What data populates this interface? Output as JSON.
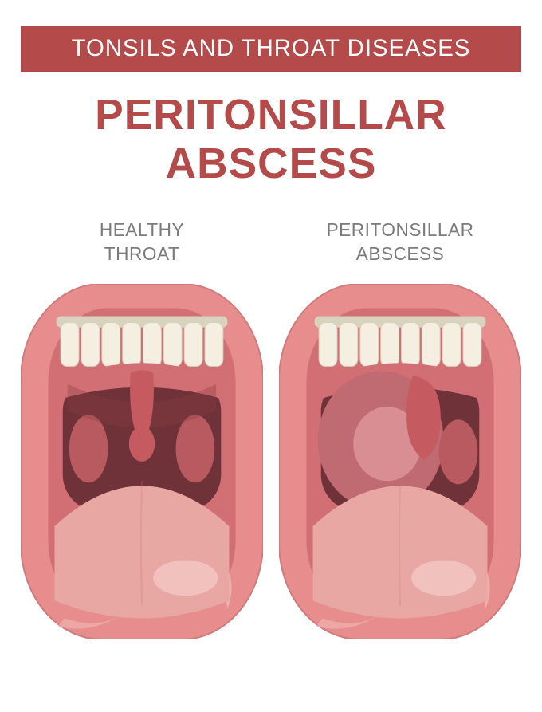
{
  "banner": {
    "text": "TONSILS AND THROAT  DISEASES",
    "bg_color": "#b44a4a",
    "text_color": "#ffffff",
    "font_size_pt": 22
  },
  "title": {
    "line1": "PERITONSILLAR",
    "line2": "ABSCESS",
    "text_color": "#b44a4a",
    "font_size_pt": 40
  },
  "label_style": {
    "text_color": "#7b7b7b",
    "font_size_pt": 17
  },
  "panels": [
    {
      "id": "healthy",
      "label": "HEALTHY\nTHROAT",
      "abscess": false
    },
    {
      "id": "abscess",
      "label": "PERITONSILLAR\nABSCESS",
      "abscess": true
    }
  ],
  "mouth_style": {
    "lip_color": "#e78d8d",
    "inner_mouth": "#d26f74",
    "deep_throat": "#6f3238",
    "palate_dark": "#8a3f45",
    "tonsil_color": "#b85a60",
    "uvula_color": "#c55b61",
    "tongue_color": "#e9a7a3",
    "tongue_highlight": "#f2c5c0",
    "tooth_color": "#f4efe1",
    "tooth_shadow": "#d9d2bf",
    "abscess_fill": "#c06a72",
    "abscess_highlight": "#d88e93",
    "lip_corner_hl": "#f0b3b1",
    "lip_stroke": "#d17b7b"
  },
  "geometry": {
    "viewbox_w": 300,
    "viewbox_h": 440,
    "teeth_count": 8
  }
}
